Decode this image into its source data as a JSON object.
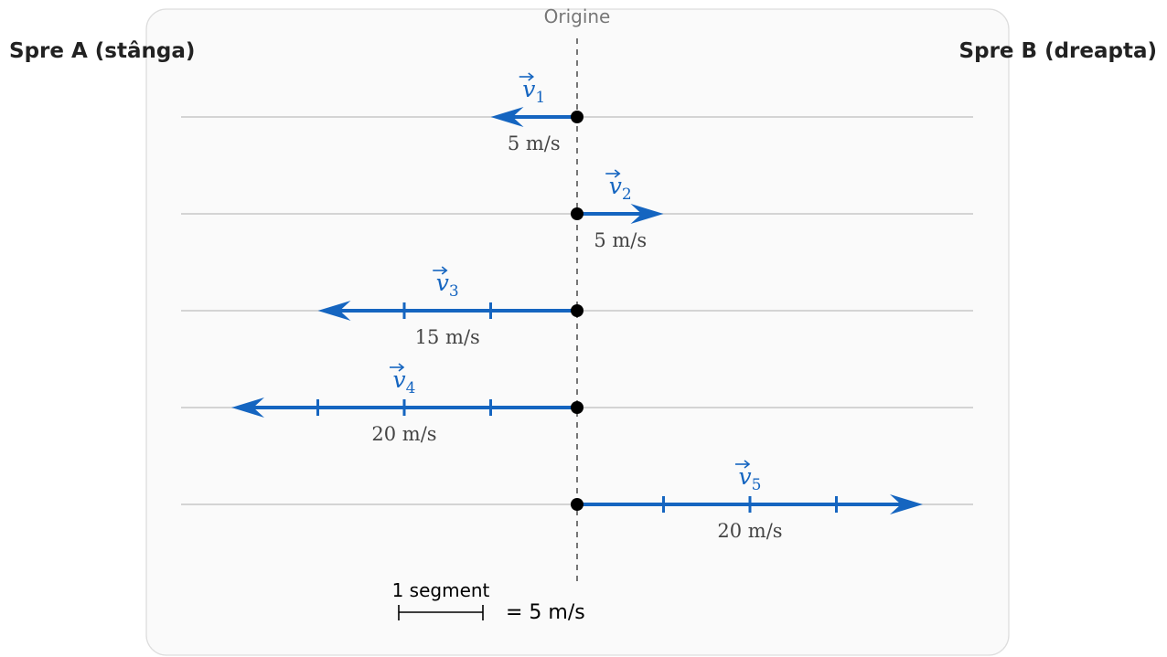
{
  "labels": {
    "origin": "Origine",
    "left_direction": "Spre A (stânga)",
    "right_direction": "Spre B (dreapta)"
  },
  "scale": {
    "segment_label": "1 segment",
    "equals": "= 5 m/s"
  },
  "units": {
    "segment_value": 5
  },
  "colors": {
    "vector": "#1565c0",
    "axis_line": "#c8c8c8",
    "origin_line": "#555555",
    "panel_bg": "#fafafa",
    "panel_border": "#dddddd",
    "dot": "#000000",
    "magnitude_text": "#444444",
    "origin_text": "#777777"
  },
  "vectors": [
    {
      "name": "v",
      "subscript": "1",
      "direction": "left",
      "segments": 1,
      "magnitude_label": "5 m/s"
    },
    {
      "name": "v",
      "subscript": "2",
      "direction": "right",
      "segments": 1,
      "magnitude_label": "5 m/s"
    },
    {
      "name": "v",
      "subscript": "3",
      "direction": "left",
      "segments": 3,
      "magnitude_label": "15 m/s"
    },
    {
      "name": "v",
      "subscript": "4",
      "direction": "left",
      "segments": 4,
      "magnitude_label": "20 m/s"
    },
    {
      "name": "v",
      "subscript": "5",
      "direction": "right",
      "segments": 4,
      "magnitude_label": "20 m/s"
    }
  ]
}
